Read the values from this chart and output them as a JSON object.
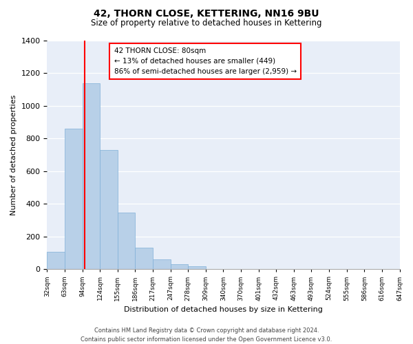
{
  "title": "42, THORN CLOSE, KETTERING, NN16 9BU",
  "subtitle": "Size of property relative to detached houses in Kettering",
  "xlabel": "Distribution of detached houses by size in Kettering",
  "ylabel": "Number of detached properties",
  "bin_labels": [
    "32sqm",
    "63sqm",
    "94sqm",
    "124sqm",
    "155sqm",
    "186sqm",
    "217sqm",
    "247sqm",
    "278sqm",
    "309sqm",
    "340sqm",
    "370sqm",
    "401sqm",
    "432sqm",
    "463sqm",
    "493sqm",
    "524sqm",
    "555sqm",
    "586sqm",
    "616sqm",
    "647sqm"
  ],
  "bar_values": [
    105,
    860,
    1140,
    730,
    345,
    130,
    62,
    30,
    18,
    0,
    0,
    0,
    0,
    0,
    0,
    0,
    0,
    0,
    0,
    0
  ],
  "bar_color": "#b8d0e8",
  "bar_edge_color": "#7fb0d8",
  "reference_line_x": 1.62,
  "reference_line_color": "red",
  "annotation_title": "42 THORN CLOSE: 80sqm",
  "annotation_line1": "← 13% of detached houses are smaller (449)",
  "annotation_line2": "86% of semi-detached houses are larger (2,959) →",
  "ylim": [
    0,
    1400
  ],
  "yticks": [
    0,
    200,
    400,
    600,
    800,
    1000,
    1200,
    1400
  ],
  "footer_line1": "Contains HM Land Registry data © Crown copyright and database right 2024.",
  "footer_line2": "Contains public sector information licensed under the Open Government Licence v3.0.",
  "background_color": "#ffffff",
  "plot_background": "#e8eef8"
}
